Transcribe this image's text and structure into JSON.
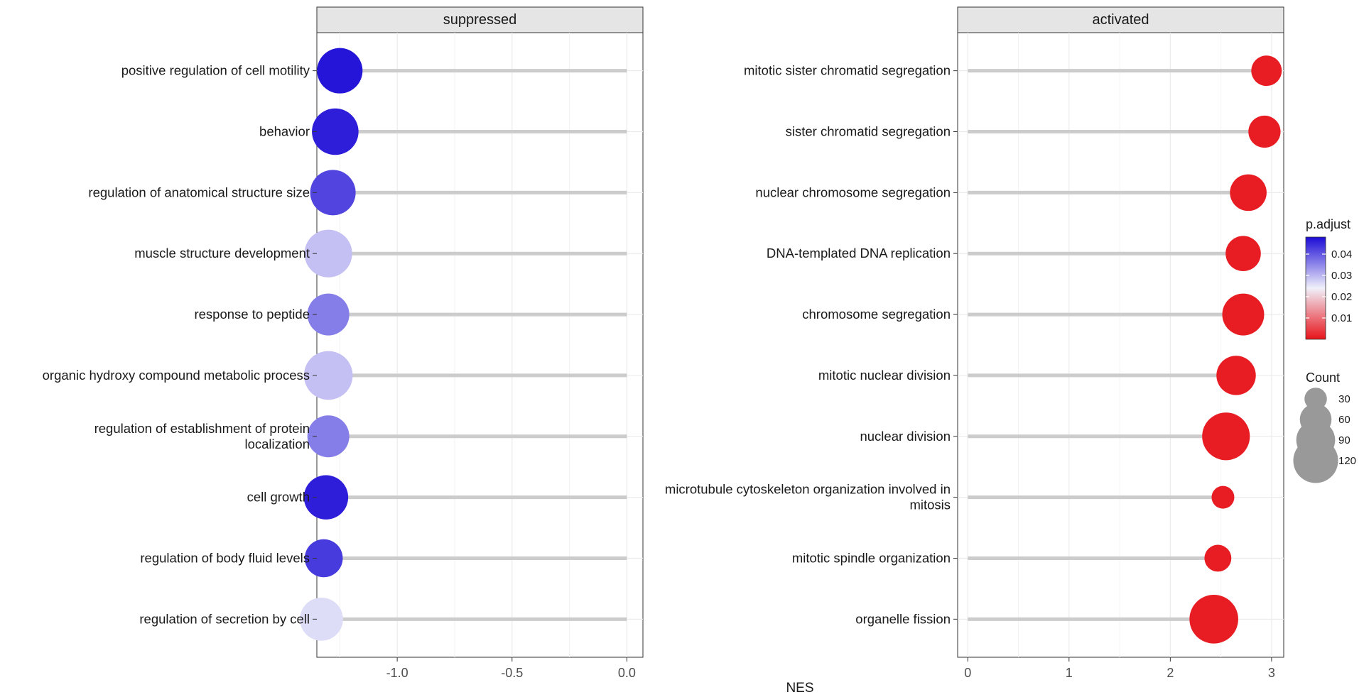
{
  "chart_data": {
    "type": "lollipop",
    "xlabel": "NES",
    "ylabel": "",
    "grid": true,
    "legend_position": "right",
    "panels": [
      {
        "strip_label": "suppressed",
        "xlim": [
          -1.35,
          0.07
        ],
        "xticks": [
          -1.0,
          -0.5,
          0.0
        ],
        "xtick_labels": [
          "-1.0",
          "-0.5",
          "0.0"
        ],
        "terms": [
          {
            "label": "positive regulation of cell motility",
            "nes": -1.25,
            "p_adjust": 0.047,
            "count": 100
          },
          {
            "label": "behavior",
            "nes": -1.27,
            "p_adjust": 0.046,
            "count": 105
          },
          {
            "label": "regulation of anatomical structure size",
            "nes": -1.28,
            "p_adjust": 0.042,
            "count": 100
          },
          {
            "label": "muscle structure development",
            "nes": -1.3,
            "p_adjust": 0.029,
            "count": 110
          },
          {
            "label": "response to peptide",
            "nes": -1.3,
            "p_adjust": 0.036,
            "count": 85
          },
          {
            "label": "organic hydroxy compound metabolic process",
            "nes": -1.3,
            "p_adjust": 0.029,
            "count": 115
          },
          {
            "label": "regulation of establishment of protein\nlocalization",
            "nes": -1.3,
            "p_adjust": 0.036,
            "count": 85
          },
          {
            "label": "cell growth",
            "nes": -1.31,
            "p_adjust": 0.046,
            "count": 95
          },
          {
            "label": "regulation of body fluid levels",
            "nes": -1.32,
            "p_adjust": 0.043,
            "count": 70
          },
          {
            "label": "regulation of secretion by cell",
            "nes": -1.33,
            "p_adjust": 0.026,
            "count": 90
          }
        ]
      },
      {
        "strip_label": "activated",
        "xlim": [
          -0.1,
          3.12
        ],
        "xticks": [
          0,
          1,
          2,
          3
        ],
        "xtick_labels": [
          "0",
          "1",
          "2",
          "3"
        ],
        "terms": [
          {
            "label": "mitotic sister chromatid segregation",
            "nes": 2.95,
            "p_adjust": 0.001,
            "count": 45
          },
          {
            "label": "sister chromatid segregation",
            "nes": 2.93,
            "p_adjust": 0.001,
            "count": 50
          },
          {
            "label": "nuclear chromosome segregation",
            "nes": 2.77,
            "p_adjust": 0.001,
            "count": 65
          },
          {
            "label": "DNA-templated DNA replication",
            "nes": 2.72,
            "p_adjust": 0.001,
            "count": 60
          },
          {
            "label": "chromosome segregation",
            "nes": 2.72,
            "p_adjust": 0.001,
            "count": 85
          },
          {
            "label": "mitotic nuclear division",
            "nes": 2.65,
            "p_adjust": 0.001,
            "count": 75
          },
          {
            "label": "nuclear division",
            "nes": 2.55,
            "p_adjust": 0.001,
            "count": 110
          },
          {
            "label": "microtubule cytoskeleton organization involved in\nmitosis",
            "nes": 2.52,
            "p_adjust": 0.001,
            "count": 25
          },
          {
            "label": "mitotic spindle organization",
            "nes": 2.47,
            "p_adjust": 0.001,
            "count": 35
          },
          {
            "label": "organelle fission",
            "nes": 2.43,
            "p_adjust": 0.001,
            "count": 115
          }
        ]
      }
    ],
    "color_legend": {
      "title": "p.adjust",
      "ticks": [
        0.04,
        0.03,
        0.02,
        0.01
      ],
      "tick_labels": [
        "0.04",
        "0.03",
        "0.02",
        "0.01"
      ],
      "range": [
        0.0,
        0.048
      ],
      "low_color": "#e8131a",
      "mid_color": "#f0f0fa",
      "high_color": "#1c0bd6"
    },
    "size_legend": {
      "title": "Count",
      "values": [
        30,
        60,
        90,
        120
      ],
      "labels": [
        "30",
        "60",
        "90",
        "120"
      ]
    }
  }
}
